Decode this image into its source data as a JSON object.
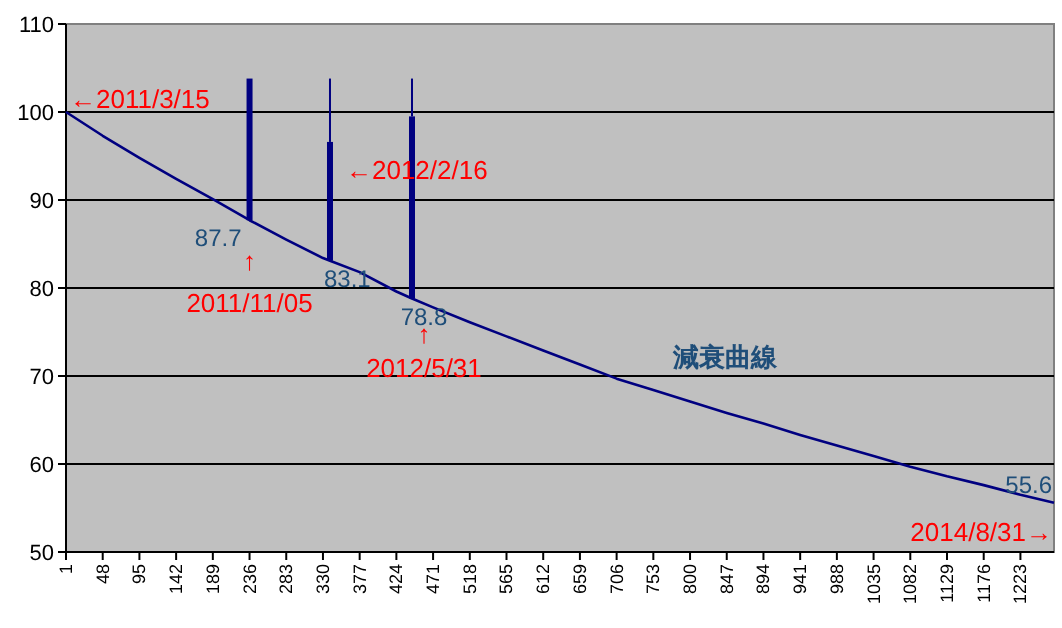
{
  "chart_data": {
    "type": "line",
    "xlim": [
      1,
      1266
    ],
    "ylim": [
      50,
      110
    ],
    "xticks": [
      1,
      48,
      95,
      142,
      189,
      236,
      283,
      330,
      377,
      424,
      471,
      518,
      565,
      612,
      659,
      706,
      753,
      800,
      847,
      894,
      941,
      988,
      1035,
      1082,
      1129,
      1176,
      1223
    ],
    "yticks": [
      50,
      60,
      70,
      80,
      90,
      100,
      110
    ],
    "grid": "y",
    "legend": false,
    "marker": "none",
    "line_style": "solid",
    "series": [
      {
        "name": "減衰曲線",
        "color": "#000080",
        "x": [
          1,
          48,
          95,
          142,
          189,
          236,
          283,
          330,
          339,
          377,
          424,
          444,
          471,
          518,
          565,
          612,
          659,
          706,
          753,
          800,
          847,
          894,
          941,
          988,
          1035,
          1082,
          1129,
          1176,
          1223,
          1266
        ],
        "values": [
          100,
          97.3,
          94.8,
          92.4,
          90.1,
          87.7,
          85.5,
          83.4,
          83.1,
          81.8,
          79.6,
          78.8,
          77.8,
          76.1,
          74.5,
          72.9,
          71.3,
          69.7,
          68.4,
          67.1,
          65.8,
          64.6,
          63.3,
          62.1,
          60.9,
          59.7,
          58.6,
          57.6,
          56.5,
          55.6
        ],
        "value_labels": [
          null,
          null,
          null,
          null,
          null,
          "87.7",
          null,
          null,
          "83.1",
          null,
          null,
          "78.8",
          null,
          null,
          null,
          null,
          null,
          null,
          null,
          null,
          null,
          null,
          null,
          null,
          null,
          null,
          null,
          null,
          null,
          "55.6"
        ]
      },
      {
        "type": "bar",
        "color": "#000080",
        "x": [
          236,
          339,
          444
        ],
        "base": [
          87.7,
          83.1,
          78.8
        ],
        "values": [
          16.1,
          13.5,
          20.7
        ]
      },
      {
        "type": "bar",
        "color": "#000080",
        "x": [
          339,
          444
        ],
        "base": [
          96.6,
          99.5
        ],
        "values": [
          7.2,
          4.3
        ]
      }
    ],
    "annotations": [
      {
        "text": "←2011/3/15",
        "x": 1,
        "y": 100
      },
      {
        "text": "↑\n2011/11/05",
        "x": 236,
        "y": 87.7
      },
      {
        "text": "←2012/2/16",
        "x": 339,
        "y": 91
      },
      {
        "text": "↑\n2012/5/31",
        "x": 444,
        "y": 78.8
      },
      {
        "text": "2014/8/31→",
        "x": 1266,
        "y": 55.6
      }
    ]
  }
}
